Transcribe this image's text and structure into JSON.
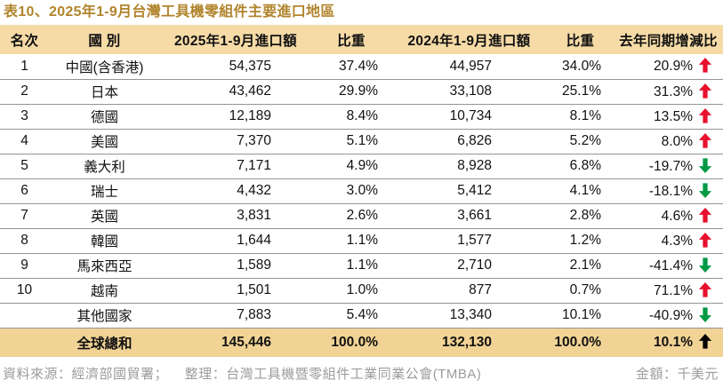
{
  "title": "表10、2025年1-9月台灣工具機零組件主要進口地區",
  "colors": {
    "accent_gold": "#B1842C",
    "header_bg": "#F6DBA7",
    "total_row_bg": "#F1D395",
    "row_line": "#949494",
    "up_arrow_red": "#E8112D",
    "down_arrow_green": "#009944",
    "total_arrow_black": "#000000",
    "footer_text": "#9C9C9C"
  },
  "table": {
    "headers": [
      "名次",
      "國 別",
      "2025年1-9月進口額",
      "比重",
      "2024年1-9月進口額",
      "比重",
      "去年同期增減比"
    ],
    "rows": [
      {
        "rank": "1",
        "country": "中國(含香港)",
        "amt2025": "54,375",
        "share2025": "37.4%",
        "amt2024": "44,957",
        "share2024": "34.0%",
        "yoy": "20.9%",
        "trend": "up"
      },
      {
        "rank": "2",
        "country": "日本",
        "amt2025": "43,462",
        "share2025": "29.9%",
        "amt2024": "33,108",
        "share2024": "25.1%",
        "yoy": "31.3%",
        "trend": "up"
      },
      {
        "rank": "3",
        "country": "德國",
        "amt2025": "12,189",
        "share2025": "8.4%",
        "amt2024": "10,734",
        "share2024": "8.1%",
        "yoy": "13.5%",
        "trend": "up"
      },
      {
        "rank": "4",
        "country": "美國",
        "amt2025": "7,370",
        "share2025": "5.1%",
        "amt2024": "6,826",
        "share2024": "5.2%",
        "yoy": "8.0%",
        "trend": "up"
      },
      {
        "rank": "5",
        "country": "義大利",
        "amt2025": "7,171",
        "share2025": "4.9%",
        "amt2024": "8,928",
        "share2024": "6.8%",
        "yoy": "-19.7%",
        "trend": "down"
      },
      {
        "rank": "6",
        "country": "瑞士",
        "amt2025": "4,432",
        "share2025": "3.0%",
        "amt2024": "5,412",
        "share2024": "4.1%",
        "yoy": "-18.1%",
        "trend": "down"
      },
      {
        "rank": "7",
        "country": "英國",
        "amt2025": "3,831",
        "share2025": "2.6%",
        "amt2024": "3,661",
        "share2024": "2.8%",
        "yoy": "4.6%",
        "trend": "up"
      },
      {
        "rank": "8",
        "country": "韓國",
        "amt2025": "1,644",
        "share2025": "1.1%",
        "amt2024": "1,577",
        "share2024": "1.2%",
        "yoy": "4.3%",
        "trend": "up"
      },
      {
        "rank": "9",
        "country": "馬來西亞",
        "amt2025": "1,589",
        "share2025": "1.1%",
        "amt2024": "2,710",
        "share2024": "2.1%",
        "yoy": "-41.4%",
        "trend": "down"
      },
      {
        "rank": "10",
        "country": "越南",
        "amt2025": "1,501",
        "share2025": "1.0%",
        "amt2024": "877",
        "share2024": "0.7%",
        "yoy": "71.1%",
        "trend": "up"
      },
      {
        "rank": "",
        "country": "其他國家",
        "amt2025": "7,883",
        "share2025": "5.4%",
        "amt2024": "13,340",
        "share2024": "10.1%",
        "yoy": "-40.9%",
        "trend": "down"
      }
    ],
    "total": {
      "rank": "",
      "country": "全球總和",
      "amt2025": "145,446",
      "share2025": "100.0%",
      "amt2024": "132,130",
      "share2024": "100.0%",
      "yoy": "10.1%",
      "trend": "up-black"
    }
  },
  "footer": {
    "source": "資料來源：經濟部國貿署；",
    "compiled_by": "整理：台灣工具機暨零組件工業同業公會(TMBA)",
    "unit": "金額：千美元"
  }
}
